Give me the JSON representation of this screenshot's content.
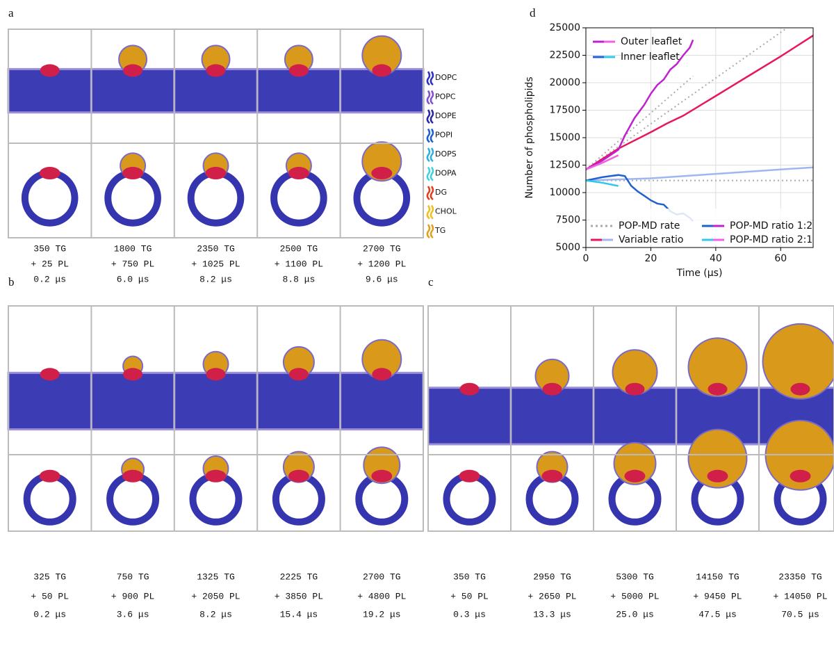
{
  "figure": {
    "panels": [
      {
        "label": "a",
        "captions": [
          [
            "350 TG",
            "+ 25 PL",
            "0.2 μs"
          ],
          [
            "1800 TG",
            "+ 750 PL",
            "6.0 μs"
          ],
          [
            "2350 TG",
            "+ 1025 PL",
            "8.2 μs"
          ],
          [
            "2500 TG",
            "+ 1100 PL",
            "8.8 μs"
          ],
          [
            "2700 TG",
            "+ 1200 PL",
            "9.6 μs"
          ]
        ]
      },
      {
        "label": "b",
        "captions": [
          [
            "325 TG",
            "+ 50 PL",
            "0.2 μs"
          ],
          [
            "750 TG",
            "+ 900 PL",
            "3.6 μs"
          ],
          [
            "1325 TG",
            "+ 2050 PL",
            "8.2 μs"
          ],
          [
            "2225 TG",
            "+ 3850 PL",
            "15.4 μs"
          ],
          [
            "2700 TG",
            "+ 4800 PL",
            "19.2 μs"
          ]
        ]
      },
      {
        "label": "c",
        "captions": [
          [
            "350 TG",
            "+ 50 PL",
            "0.3 μs"
          ],
          [
            "2950 TG",
            "+ 2650 PL",
            "13.3 μs"
          ],
          [
            "5300 TG",
            "+ 5000 PL",
            "25.0 μs"
          ],
          [
            "14150 TG",
            "+ 9450 PL",
            "47.5 μs"
          ],
          [
            "23350 TG",
            "+ 14050 PL",
            "70.5 μs"
          ]
        ]
      }
    ],
    "lipids": [
      {
        "name": "DOPC",
        "color": "#3030c0"
      },
      {
        "name": "POPC",
        "color": "#8050d0"
      },
      {
        "name": "DOPE",
        "color": "#2a2aa0"
      },
      {
        "name": "POPI",
        "color": "#1f5fd0"
      },
      {
        "name": "DOPS",
        "color": "#30b0e0"
      },
      {
        "name": "DOPA",
        "color": "#40d0e0"
      },
      {
        "name": "DG",
        "color": "#e04020"
      },
      {
        "name": "CHOL",
        "color": "#f0c020"
      },
      {
        "name": "TG",
        "color": "#e0a020"
      }
    ]
  },
  "chart_data": {
    "type": "line",
    "panel_label": "d",
    "xlabel": "Time (μs)",
    "ylabel": "Number of phospholipids",
    "xlim": [
      0,
      70
    ],
    "xticks": [
      0,
      20,
      40,
      60
    ],
    "ylim": [
      5000,
      25000
    ],
    "yticks": [
      5000,
      7500,
      10000,
      12500,
      15000,
      17500,
      20000,
      22500,
      25000
    ],
    "grid": true,
    "leaflets": [
      {
        "name": "Outer leaflet",
        "colors": [
          "#c020d0",
          "#f060e0"
        ]
      },
      {
        "name": "Inner leaflet",
        "colors": [
          "#2060d0",
          "#30c8e8"
        ]
      }
    ],
    "series": [
      {
        "name": "POP-MD rate",
        "color": "#aaaaaa",
        "dashed": true,
        "x": [
          0,
          62,
          null,
          0,
          33,
          null,
          0,
          70
        ],
        "values": [
          12100,
          25000,
          null,
          12100,
          20600,
          null,
          11100,
          11100
        ]
      },
      {
        "name": "Variable ratio",
        "outer": {
          "color": "#e8175d",
          "x": [
            0,
            10,
            20,
            25,
            30,
            40,
            50,
            60,
            70
          ],
          "values": [
            12100,
            14000,
            15500,
            16300,
            17000,
            18800,
            20600,
            22400,
            24300
          ]
        },
        "inner": {
          "color": "#9fb6f0",
          "x": [
            0,
            20,
            40,
            60,
            70
          ],
          "values": [
            11100,
            11300,
            11700,
            12100,
            12300
          ]
        }
      },
      {
        "name": "POP-MD ratio 1:2",
        "outer": {
          "color": "#c020d0",
          "x": [
            0,
            5,
            10,
            12,
            15,
            18,
            20,
            22,
            24,
            26,
            28,
            30,
            32,
            33
          ],
          "values": [
            12100,
            12900,
            13900,
            15200,
            16800,
            18000,
            19000,
            19800,
            20300,
            21200,
            21700,
            22500,
            23200,
            23900
          ]
        },
        "inner": {
          "color": "#2060d0",
          "x": [
            0,
            5,
            10,
            12,
            14,
            16,
            18,
            20,
            22,
            24,
            26,
            28,
            30,
            32,
            33
          ],
          "values": [
            11100,
            11400,
            11600,
            11500,
            10600,
            10100,
            9700,
            9300,
            9000,
            8900,
            8300,
            8000,
            8100,
            7700,
            7400
          ]
        }
      },
      {
        "name": "POP-MD ratio 2:1",
        "outer": {
          "color": "#f060e0",
          "x": [
            0,
            5,
            10
          ],
          "values": [
            12100,
            12700,
            13400
          ]
        },
        "inner": {
          "color": "#30c8e8",
          "x": [
            0,
            5,
            10
          ],
          "values": [
            11100,
            10900,
            10600
          ]
        }
      }
    ]
  }
}
